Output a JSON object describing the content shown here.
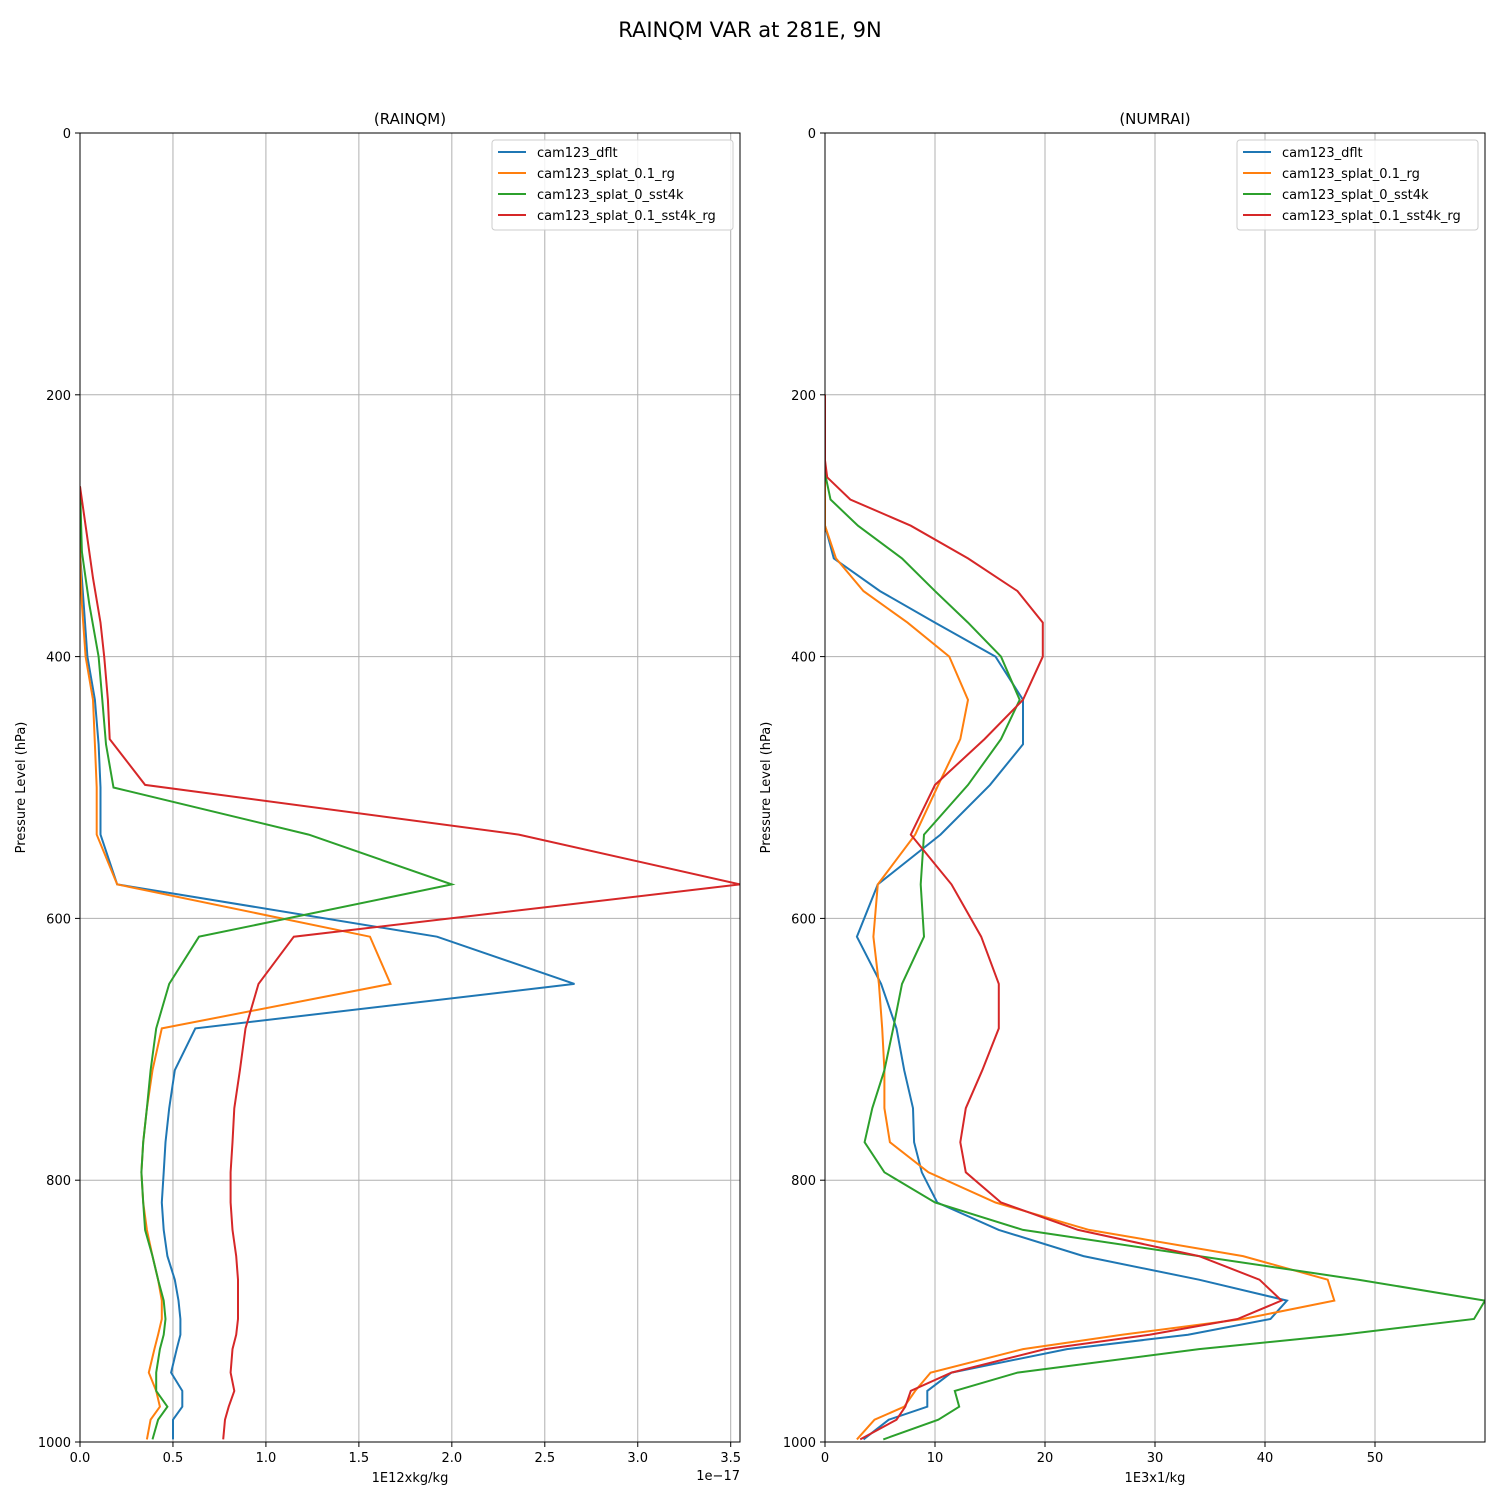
{
  "figure_title": "RAINQM VAR at 281E, 9N",
  "legend_entries": [
    "cam123_dflt",
    "cam123_splat_0.1_rg",
    "cam123_splat_0_sst4k",
    "cam123_splat_0.1_sst4k_rg"
  ],
  "colors": [
    "#1f77b4",
    "#ff7f0e",
    "#2ca02c",
    "#d62728"
  ],
  "chart_data": [
    {
      "type": "line",
      "title": "(RAINQM)",
      "xlabel": "1E12xkg/kg",
      "x_offset_label": "1e−17",
      "ylabel": "Pressure Level (hPa)",
      "xlim": [
        0,
        3.55
      ],
      "ylim": [
        1000,
        0
      ],
      "y_inverted": true,
      "xticks": [
        0,
        0.5,
        1.0,
        1.5,
        2.0,
        2.5,
        3.0,
        3.5
      ],
      "xtick_labels": [
        "0.0",
        "0.5",
        "1.0",
        "1.5",
        "2.0",
        "2.5",
        "3.0",
        "3.5"
      ],
      "yticks": [
        0,
        200,
        400,
        600,
        800,
        1000
      ],
      "ytick_labels": [
        "0",
        "200",
        "400",
        "600",
        "800",
        "1000"
      ],
      "grid": true,
      "legend_position": "upper right",
      "series": [
        {
          "name": "cam123_dflt",
          "points": [
            [
              0,
              270
            ],
            [
              0,
              320
            ],
            [
              0.02,
              360
            ],
            [
              0.04,
              400
            ],
            [
              0.08,
              433
            ],
            [
              0.1,
              467
            ],
            [
              0.11,
              500
            ],
            [
              0.11,
              536
            ],
            [
              0.2,
              574
            ],
            [
              1.92,
              614
            ],
            [
              2.66,
              650
            ],
            [
              0.62,
              684
            ],
            [
              0.51,
              716
            ],
            [
              0.48,
              745
            ],
            [
              0.46,
              771
            ],
            [
              0.45,
              794
            ],
            [
              0.44,
              817
            ],
            [
              0.45,
              838
            ],
            [
              0.47,
              858
            ],
            [
              0.51,
              876
            ],
            [
              0.53,
              892
            ],
            [
              0.54,
              906
            ],
            [
              0.54,
              918
            ],
            [
              0.52,
              929
            ],
            [
              0.49,
              947
            ],
            [
              0.55,
              961
            ],
            [
              0.55,
              973
            ],
            [
              0.5,
              983
            ],
            [
              0.5,
              998
            ]
          ]
        },
        {
          "name": "cam123_splat_0.1_rg",
          "points": [
            [
              0,
              270
            ],
            [
              0,
              320
            ],
            [
              0.01,
              360
            ],
            [
              0.03,
              400
            ],
            [
              0.07,
              433
            ],
            [
              0.08,
              467
            ],
            [
              0.09,
              500
            ],
            [
              0.09,
              536
            ],
            [
              0.2,
              574
            ],
            [
              1.56,
              614
            ],
            [
              1.67,
              650
            ],
            [
              0.44,
              684
            ],
            [
              0.39,
              716
            ],
            [
              0.36,
              745
            ],
            [
              0.34,
              771
            ],
            [
              0.33,
              794
            ],
            [
              0.34,
              817
            ],
            [
              0.36,
              838
            ],
            [
              0.39,
              858
            ],
            [
              0.42,
              876
            ],
            [
              0.44,
              892
            ],
            [
              0.44,
              906
            ],
            [
              0.42,
              918
            ],
            [
              0.4,
              929
            ],
            [
              0.37,
              947
            ],
            [
              0.41,
              961
            ],
            [
              0.43,
              973
            ],
            [
              0.38,
              983
            ],
            [
              0.36,
              998
            ]
          ]
        },
        {
          "name": "cam123_splat_0_sst4k",
          "points": [
            [
              0,
              270
            ],
            [
              0.01,
              320
            ],
            [
              0.05,
              360
            ],
            [
              0.1,
              400
            ],
            [
              0.12,
              433
            ],
            [
              0.14,
              467
            ],
            [
              0.18,
              500
            ],
            [
              1.23,
              536
            ],
            [
              2.0,
              574
            ],
            [
              0.64,
              614
            ],
            [
              0.48,
              650
            ],
            [
              0.41,
              684
            ],
            [
              0.38,
              716
            ],
            [
              0.36,
              745
            ],
            [
              0.34,
              771
            ],
            [
              0.33,
              794
            ],
            [
              0.34,
              817
            ],
            [
              0.35,
              838
            ],
            [
              0.39,
              858
            ],
            [
              0.42,
              876
            ],
            [
              0.45,
              892
            ],
            [
              0.46,
              906
            ],
            [
              0.45,
              918
            ],
            [
              0.43,
              929
            ],
            [
              0.41,
              947
            ],
            [
              0.41,
              961
            ],
            [
              0.47,
              973
            ],
            [
              0.42,
              983
            ],
            [
              0.39,
              998
            ]
          ]
        },
        {
          "name": "cam123_splat_0.1_sst4k_rg",
          "points": [
            [
              0,
              270
            ],
            [
              0.03,
              300
            ],
            [
              0.07,
              340
            ],
            [
              0.11,
              374
            ],
            [
              0.13,
              400
            ],
            [
              0.15,
              433
            ],
            [
              0.16,
              463
            ],
            [
              0.35,
              498
            ],
            [
              2.36,
              536
            ],
            [
              3.55,
              574
            ],
            [
              1.15,
              614
            ],
            [
              0.96,
              650
            ],
            [
              0.89,
              684
            ],
            [
              0.86,
              716
            ],
            [
              0.83,
              745
            ],
            [
              0.82,
              771
            ],
            [
              0.81,
              794
            ],
            [
              0.81,
              817
            ],
            [
              0.82,
              838
            ],
            [
              0.84,
              858
            ],
            [
              0.85,
              876
            ],
            [
              0.85,
              892
            ],
            [
              0.85,
              906
            ],
            [
              0.84,
              918
            ],
            [
              0.82,
              929
            ],
            [
              0.81,
              947
            ],
            [
              0.83,
              961
            ],
            [
              0.8,
              973
            ],
            [
              0.78,
              983
            ],
            [
              0.77,
              998
            ]
          ]
        }
      ]
    },
    {
      "type": "line",
      "title": "(NUMRAI)",
      "xlabel": "1E3x1/kg",
      "ylabel": "Pressure Level (hPa)",
      "xlim": [
        0,
        60
      ],
      "ylim": [
        1000,
        0
      ],
      "y_inverted": true,
      "xticks": [
        0,
        10,
        20,
        30,
        40,
        50
      ],
      "xtick_labels": [
        "0",
        "10",
        "20",
        "30",
        "40",
        "50"
      ],
      "yticks": [
        0,
        200,
        400,
        600,
        800,
        1000
      ],
      "ytick_labels": [
        "0",
        "200",
        "400",
        "600",
        "800",
        "1000"
      ],
      "grid": true,
      "legend_position": "upper right",
      "series": [
        {
          "name": "cam123_dflt",
          "points": [
            [
              0,
              200
            ],
            [
              0,
              300
            ],
            [
              0.8,
              325
            ],
            [
              5,
              350
            ],
            [
              10,
              374
            ],
            [
              15.5,
              400
            ],
            [
              18,
              433
            ],
            [
              18,
              467
            ],
            [
              15,
              498
            ],
            [
              10.5,
              536
            ],
            [
              4.8,
              574
            ],
            [
              2.9,
              614
            ],
            [
              5.1,
              650
            ],
            [
              6.5,
              684
            ],
            [
              7.2,
              716
            ],
            [
              8,
              745
            ],
            [
              8.1,
              771
            ],
            [
              8.8,
              794
            ],
            [
              10.2,
              817
            ],
            [
              15.8,
              838
            ],
            [
              23.5,
              858
            ],
            [
              34,
              876
            ],
            [
              42,
              892
            ],
            [
              40.5,
              906
            ],
            [
              33,
              918
            ],
            [
              22,
              929
            ],
            [
              11.5,
              947
            ],
            [
              9.3,
              961
            ],
            [
              9.3,
              973
            ],
            [
              5.8,
              983
            ],
            [
              3.5,
              998
            ]
          ]
        },
        {
          "name": "cam123_splat_0.1_rg",
          "points": [
            [
              0,
              200
            ],
            [
              0,
              300
            ],
            [
              1,
              325
            ],
            [
              3.5,
              350
            ],
            [
              7.5,
              374
            ],
            [
              11.3,
              400
            ],
            [
              13,
              433
            ],
            [
              12.3,
              463
            ],
            [
              10.3,
              498
            ],
            [
              8.2,
              536
            ],
            [
              4.8,
              574
            ],
            [
              4.4,
              614
            ],
            [
              4.9,
              650
            ],
            [
              5.2,
              684
            ],
            [
              5.4,
              716
            ],
            [
              5.4,
              745
            ],
            [
              5.9,
              771
            ],
            [
              9.4,
              794
            ],
            [
              15.5,
              817
            ],
            [
              24,
              838
            ],
            [
              38,
              858
            ],
            [
              45.7,
              876
            ],
            [
              46.3,
              892
            ],
            [
              38,
              906
            ],
            [
              27,
              918
            ],
            [
              18,
              929
            ],
            [
              9.6,
              947
            ],
            [
              8.2,
              961
            ],
            [
              7.2,
              973
            ],
            [
              4.5,
              983
            ],
            [
              2.9,
              998
            ]
          ]
        },
        {
          "name": "cam123_splat_0_sst4k",
          "points": [
            [
              0,
              200
            ],
            [
              0,
              260
            ],
            [
              0.5,
              280
            ],
            [
              3,
              300
            ],
            [
              7,
              325
            ],
            [
              10,
              350
            ],
            [
              13,
              374
            ],
            [
              16,
              400
            ],
            [
              17.7,
              433
            ],
            [
              16,
              463
            ],
            [
              13,
              498
            ],
            [
              9,
              536
            ],
            [
              8.7,
              574
            ],
            [
              9,
              614
            ],
            [
              7,
              650
            ],
            [
              6.2,
              684
            ],
            [
              5.4,
              716
            ],
            [
              4.3,
              745
            ],
            [
              3.6,
              771
            ],
            [
              5.4,
              794
            ],
            [
              10,
              817
            ],
            [
              18,
              838
            ],
            [
              34,
              858
            ],
            [
              48.5,
              876
            ],
            [
              60,
              892
            ],
            [
              59,
              906
            ],
            [
              47,
              918
            ],
            [
              34,
              929
            ],
            [
              17.5,
              947
            ],
            [
              11.8,
              961
            ],
            [
              12.2,
              973
            ],
            [
              10.3,
              983
            ],
            [
              5.3,
              998
            ]
          ]
        },
        {
          "name": "cam123_splat_0.1_sst4k_rg",
          "points": [
            [
              0,
              200
            ],
            [
              0,
              250
            ],
            [
              0.2,
              263
            ],
            [
              2.3,
              280
            ],
            [
              7.8,
              300
            ],
            [
              13,
              325
            ],
            [
              17.5,
              350
            ],
            [
              19.8,
              374
            ],
            [
              19.8,
              400
            ],
            [
              18,
              433
            ],
            [
              14.5,
              463
            ],
            [
              10,
              498
            ],
            [
              7.8,
              536
            ],
            [
              11.5,
              574
            ],
            [
              14.2,
              614
            ],
            [
              15.8,
              650
            ],
            [
              15.8,
              684
            ],
            [
              14.3,
              716
            ],
            [
              12.8,
              745
            ],
            [
              12.3,
              771
            ],
            [
              12.8,
              794
            ],
            [
              16,
              817
            ],
            [
              23,
              838
            ],
            [
              34,
              858
            ],
            [
              39.5,
              876
            ],
            [
              41.5,
              892
            ],
            [
              37.5,
              906
            ],
            [
              29.5,
              918
            ],
            [
              20,
              929
            ],
            [
              11.5,
              947
            ],
            [
              7.8,
              961
            ],
            [
              7.3,
              973
            ],
            [
              6.5,
              983
            ],
            [
              3.2,
              998
            ]
          ]
        }
      ]
    }
  ]
}
